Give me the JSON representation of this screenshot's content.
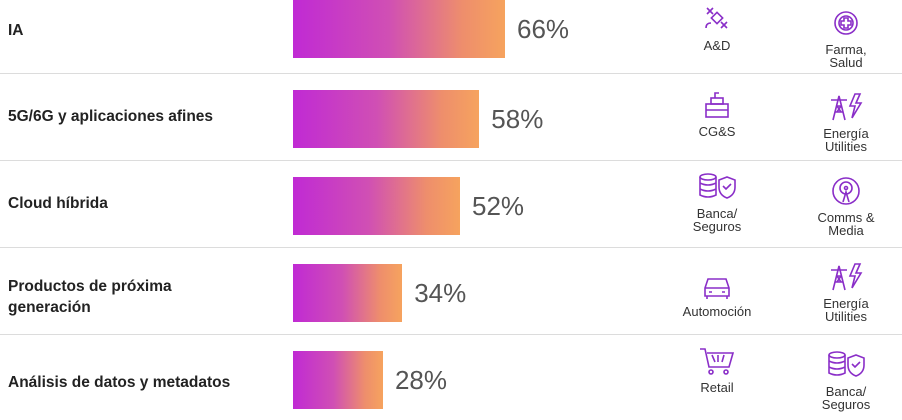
{
  "chart_data": {
    "type": "bar",
    "orientation": "horizontal",
    "categories": [
      "IA",
      "5G/6G y aplicaciones afines",
      "Cloud híbrida",
      "Productos de próxima generación",
      "Análisis de datos y metadatos"
    ],
    "values": [
      66,
      58,
      52,
      34,
      28
    ],
    "value_labels": [
      "66%",
      "58%",
      "52%",
      "34%",
      "28%"
    ],
    "unit": "%",
    "colors": {
      "bar_start": "#c02ad4",
      "bar_end": "#f6a35e",
      "icon": "#8a2ec8"
    }
  },
  "sectors": [
    [
      {
        "icon": "satellite-icon",
        "lines": [
          "A&D"
        ]
      },
      {
        "icon": "medical-cross-icon",
        "lines": [
          "Farma,",
          "Salud"
        ]
      }
    ],
    [
      {
        "icon": "building-icon",
        "lines": [
          "CG&S"
        ]
      },
      {
        "icon": "power-tower-icon",
        "lines": [
          "Energía",
          "Utilities"
        ]
      }
    ],
    [
      {
        "icon": "coins-shield-icon",
        "lines": [
          "Banca/",
          "Seguros"
        ]
      },
      {
        "icon": "broadcast-antenna-icon",
        "lines": [
          "Comms &",
          "Media"
        ]
      }
    ],
    [
      {
        "icon": "car-icon",
        "lines": [
          "Automoción"
        ]
      },
      {
        "icon": "power-tower-icon",
        "lines": [
          "Energía",
          "Utilities"
        ]
      }
    ],
    [
      {
        "icon": "shopping-cart-icon",
        "lines": [
          "Retail"
        ]
      },
      {
        "icon": "coins-shield-icon",
        "lines": [
          "Banca/",
          "Seguros"
        ]
      }
    ]
  ]
}
